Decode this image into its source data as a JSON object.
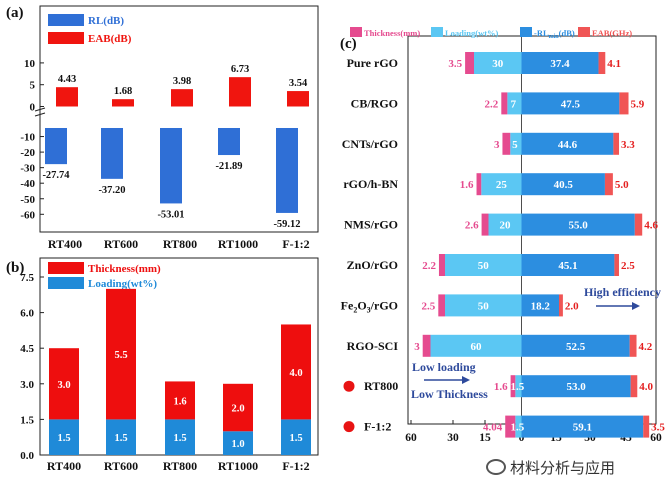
{
  "chart_data": [
    {
      "id": "a",
      "panel_label": "(a)",
      "type": "bar",
      "categories": [
        "RT400",
        "RT600",
        "RT800",
        "RT1000",
        "F-1:2"
      ],
      "series": [
        {
          "name": "RL(dB)",
          "values": [
            -27.74,
            -37.2,
            -53.01,
            -21.89,
            -59.12
          ],
          "labels": [
            "-27.74",
            "-37.20",
            "-53.01",
            "-21.89",
            "-59.12"
          ],
          "color": "#2f6fd6"
        },
        {
          "name": "EAB(dB)",
          "values": [
            4.43,
            1.68,
            3.98,
            6.73,
            3.54
          ],
          "labels": [
            "4.43",
            "1.68",
            "3.98",
            "6.73",
            "3.54"
          ],
          "color": "#f0150f"
        }
      ],
      "yticks": [
        "10",
        "5",
        "0",
        "-10",
        "-20",
        "-30",
        "-40",
        "-50",
        "-60"
      ],
      "legend_position": "top-left"
    },
    {
      "id": "b",
      "panel_label": "(b)",
      "type": "bar",
      "stacked": true,
      "categories": [
        "RT400",
        "RT600",
        "RT800",
        "RT1000",
        "F-1:2"
      ],
      "series": [
        {
          "name": "Loading(wt%)",
          "values": [
            1.5,
            1.5,
            1.5,
            1.0,
            1.5
          ],
          "labels": [
            "1.5",
            "1.5",
            "1.5",
            "1.0",
            "1.5"
          ],
          "color": "#1f8ad8"
        },
        {
          "name": "Thickness(mm)",
          "values": [
            3.0,
            5.5,
            1.6,
            2.0,
            4.0
          ],
          "labels": [
            "3.0",
            "5.5",
            "1.6",
            "2.0",
            "4.0"
          ],
          "color": "#ee0e0e"
        }
      ],
      "ylim": [
        0,
        7.5
      ],
      "yticks": [
        "0.0",
        "1.5",
        "3.0",
        "4.5",
        "6.0",
        "7.5"
      ],
      "legend_position": "top-left"
    },
    {
      "id": "c",
      "panel_label": "(c)",
      "type": "bar",
      "orientation": "horizontal",
      "diverging": true,
      "legend": [
        "Thickness(mm)",
        "Loading(wt%)",
        "-RL",
        "min",
        "(dB)",
        "EAB(GHz)"
      ],
      "colors": {
        "thickness": "#e54b8f",
        "loading": "#5bc7f3",
        "rl": "#2c8ee0",
        "eab": "#f05555"
      },
      "materials": [
        "Pure rGO",
        "CB/RGO",
        "CNTs/rGO",
        "rGO/h-BN",
        "NMS/rGO",
        "ZnO/rGO",
        "Fe2O3/rGO",
        "RGO-SCI",
        "RT800",
        "F-1:2"
      ],
      "material_parts": [
        [
          "Pure rGO"
        ],
        [
          "CB/RGO"
        ],
        [
          "CNTs/rGO"
        ],
        [
          "rGO/h-BN"
        ],
        [
          "NMS/rGO"
        ],
        [
          "ZnO/rGO"
        ],
        [
          "Fe",
          "2",
          "O",
          "3",
          "/rGO"
        ],
        [
          "RGO-SCI"
        ],
        [
          "RT800"
        ],
        [
          "F-1:2"
        ]
      ],
      "thickness": [
        3.5,
        2.2,
        3,
        1.6,
        2.6,
        2.2,
        2.5,
        3,
        1.6,
        4.04
      ],
      "thickness_labels": [
        "3.5",
        "2.2",
        "3",
        "1.6",
        "2.6",
        "2.2",
        "2.5",
        "3",
        "1.6",
        "4.04"
      ],
      "loading": [
        30,
        7,
        5,
        25,
        20,
        50,
        50,
        60,
        1.5,
        1.5
      ],
      "loading_labels": [
        "30",
        "7",
        "5",
        "25",
        "20",
        "50",
        "50",
        "60",
        "1.5",
        "1.5"
      ],
      "rl_min": [
        37.4,
        47.5,
        44.6,
        40.5,
        55.0,
        45.1,
        18.2,
        52.5,
        53.0,
        59.1
      ],
      "rl_labels": [
        "37.4",
        "47.5",
        "44.6",
        "40.5",
        "55.0",
        "45.1",
        "18.2",
        "52.5",
        "53.0",
        "59.1"
      ],
      "eab": [
        4.1,
        5.9,
        3.3,
        5.0,
        4.6,
        2.5,
        2.0,
        4.2,
        4.0,
        3.5
      ],
      "eab_labels": [
        "4.1",
        "5.9",
        "3.3",
        "5.0",
        "4.6",
        "2.5",
        "2.0",
        "4.2",
        "4.0",
        "3.5"
      ],
      "highlight_rows": [
        "RT800",
        "F-1:2"
      ],
      "xticks_left": [
        "60",
        "30",
        "15",
        "0"
      ],
      "xticks_right": [
        "15",
        "30",
        "45",
        "60"
      ],
      "annotations": [
        "High efficiency",
        "Low loading",
        "Low Thickness"
      ]
    }
  ],
  "watermark": "材料分析与应用"
}
